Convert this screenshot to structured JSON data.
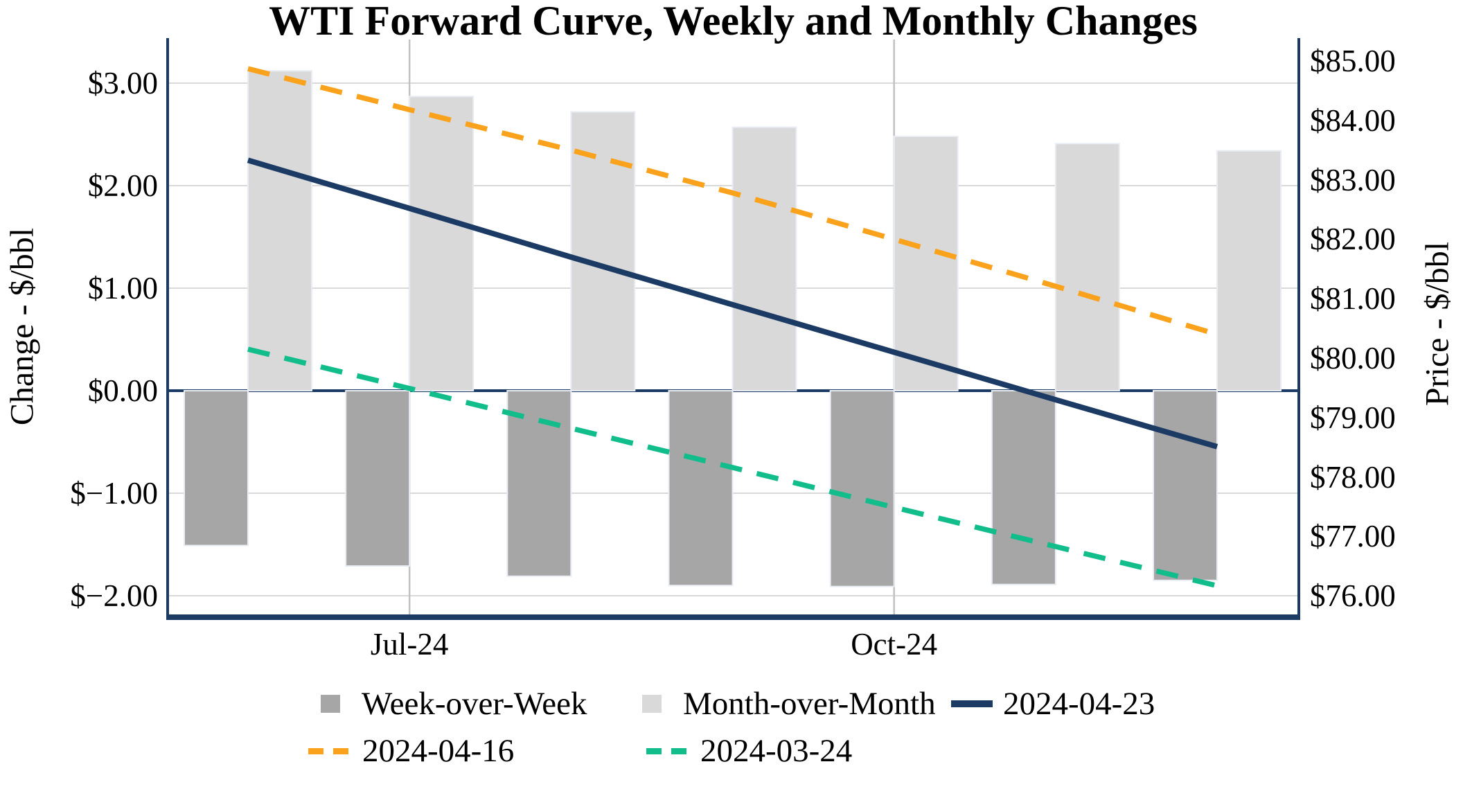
{
  "chart_data": {
    "type": "combo",
    "title": "WTI Forward Curve, Weekly and Monthly Changes",
    "n_groups": 7,
    "grid": "horizontal gridlines for left axis; vertical gridlines at labeled x ticks",
    "x_axis": {
      "tick_labels": [
        {
          "index": 1,
          "label": "Jul-24"
        },
        {
          "index": 4,
          "label": "Oct-24"
        }
      ]
    },
    "left_axis": {
      "title": "Change - $/bbl",
      "ylim": [
        -2.35,
        3.4
      ],
      "ticks": [
        {
          "value": 3,
          "label": "$3.00"
        },
        {
          "value": 2,
          "label": "$2.00"
        },
        {
          "value": 1,
          "label": "$1.00"
        },
        {
          "value": 0,
          "label": "$0.00"
        },
        {
          "value": -1,
          "label": "$−1.00"
        },
        {
          "value": -2,
          "label": "$−2.00"
        }
      ]
    },
    "right_axis": {
      "title": "Price - $/bbl",
      "ylim": [
        75.65,
        85.35
      ],
      "ticks": [
        {
          "value": 85,
          "label": "$85.00"
        },
        {
          "value": 84,
          "label": "$84.00"
        },
        {
          "value": 83,
          "label": "$83.00"
        },
        {
          "value": 82,
          "label": "$82.00"
        },
        {
          "value": 81,
          "label": "$81.00"
        },
        {
          "value": 80,
          "label": "$80.00"
        },
        {
          "value": 79,
          "label": "$79.00"
        },
        {
          "value": 78,
          "label": "$78.00"
        },
        {
          "value": 77,
          "label": "$77.00"
        },
        {
          "value": 76,
          "label": "$76.00"
        }
      ]
    },
    "bar_series": [
      {
        "name": "Week-over-Week",
        "axis": "left",
        "color": "#A6A6A6",
        "values": [
          -1.51,
          -1.71,
          -1.81,
          -1.9,
          -1.91,
          -1.89,
          -1.85
        ]
      },
      {
        "name": "Month-over-Month",
        "axis": "left",
        "color": "#D9D9D9",
        "values": [
          3.12,
          2.87,
          2.72,
          2.57,
          2.48,
          2.41,
          2.34
        ]
      }
    ],
    "line_series": [
      {
        "name": "2024-04-23",
        "axis": "right",
        "style": "solid",
        "color": "#1B3A64",
        "values": [
          83.33,
          82.52,
          81.7,
          80.9,
          80.1,
          79.3,
          78.51
        ]
      },
      {
        "name": "2024-04-16",
        "axis": "right",
        "style": "dashed",
        "color": "#FAA21B",
        "values": [
          84.87,
          84.18,
          83.5,
          82.78,
          82.0,
          81.21,
          80.4
        ]
      },
      {
        "name": "2024-03-24",
        "axis": "right",
        "style": "dashed",
        "color": "#12BD8C",
        "values": [
          80.15,
          79.49,
          78.82,
          78.16,
          77.49,
          76.83,
          76.17
        ]
      }
    ],
    "colors": {
      "spine_and_zero_line": "#1B3A64",
      "h_gridline": "#D9D9D9",
      "v_gridline": "#BFC1C4",
      "bar_border": "#E9EDF3"
    }
  },
  "legend": {
    "items": [
      {
        "label": "Week-over-Week",
        "swatch": "square",
        "color": "#A6A6A6"
      },
      {
        "label": "Month-over-Month",
        "swatch": "square",
        "color": "#D9D9D9"
      },
      {
        "label": "2024-04-23",
        "swatch": "line",
        "color": "#1B3A64"
      },
      {
        "label": "2024-04-16",
        "swatch": "dashes",
        "color": "#FAA21B"
      },
      {
        "label": "2024-03-24",
        "swatch": "dashes",
        "color": "#12BD8C"
      }
    ]
  }
}
